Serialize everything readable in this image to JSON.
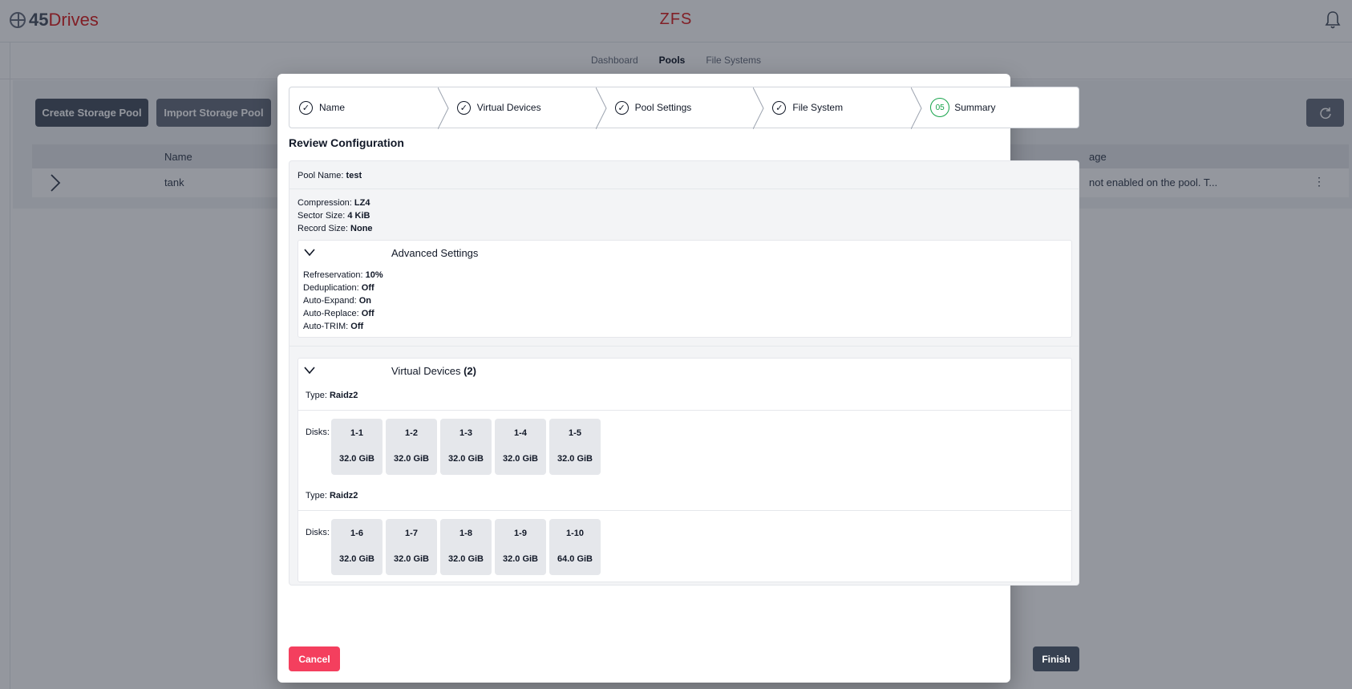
{
  "app": {
    "brand_number": "45",
    "brand_name": "Drives",
    "title": "ZFS"
  },
  "nav": {
    "tabs": [
      {
        "label": "Dashboard"
      },
      {
        "label": "Pools"
      },
      {
        "label": "File Systems"
      }
    ]
  },
  "toolbar": {
    "create_label": "Create Storage Pool",
    "import_label": "Import Storage Pool"
  },
  "table": {
    "col_name": "Name",
    "col_usage": "age",
    "row_name": "tank",
    "row_usage": "not enabled on the pool. T..."
  },
  "wizard": {
    "steps": [
      {
        "label": "Name",
        "state": "complete"
      },
      {
        "label": "Virtual Devices",
        "state": "complete"
      },
      {
        "label": "Pool Settings",
        "state": "complete"
      },
      {
        "label": "File System",
        "state": "complete"
      },
      {
        "label": "Summary",
        "state": "current",
        "number": "05"
      }
    ],
    "review_title": "Review Configuration",
    "pool_name": {
      "key": "Pool Name:",
      "value": "test"
    },
    "basic": [
      {
        "key": "Compression:",
        "value": "LZ4"
      },
      {
        "key": "Sector Size:",
        "value": "4 KiB"
      },
      {
        "key": "Record Size:",
        "value": "None"
      }
    ],
    "advanced": {
      "title": "Advanced Settings",
      "items": [
        {
          "key": "Refreservation:",
          "value": "10%"
        },
        {
          "key": "Deduplication:",
          "value": "Off"
        },
        {
          "key": "Auto-Expand:",
          "value": "On"
        },
        {
          "key": "Auto-Replace:",
          "value": "Off"
        },
        {
          "key": "Auto-TRIM:",
          "value": "Off"
        }
      ]
    },
    "vdevs": {
      "title": "Virtual Devices",
      "count": "(2)",
      "groups": [
        {
          "type_key": "Type:",
          "type": "Raidz2",
          "disks_key": "Disks:",
          "disks": [
            {
              "label": "1-1",
              "size": "32.0 GiB"
            },
            {
              "label": "1-2",
              "size": "32.0 GiB"
            },
            {
              "label": "1-3",
              "size": "32.0 GiB"
            },
            {
              "label": "1-4",
              "size": "32.0 GiB"
            },
            {
              "label": "1-5",
              "size": "32.0 GiB"
            }
          ]
        },
        {
          "type_key": "Type:",
          "type": "Raidz2",
          "disks_key": "Disks:",
          "disks": [
            {
              "label": "1-6",
              "size": "32.0 GiB"
            },
            {
              "label": "1-7",
              "size": "32.0 GiB"
            },
            {
              "label": "1-8",
              "size": "32.0 GiB"
            },
            {
              "label": "1-9",
              "size": "32.0 GiB"
            },
            {
              "label": "1-10",
              "size": "64.0 GiB"
            }
          ]
        }
      ]
    },
    "cancel_label": "Cancel",
    "finish_label": "Finish"
  },
  "colors": {
    "accent_red": "#dc2626",
    "cancel": "#f43f5e",
    "finish": "#374151",
    "current_step": "#16a34a"
  }
}
